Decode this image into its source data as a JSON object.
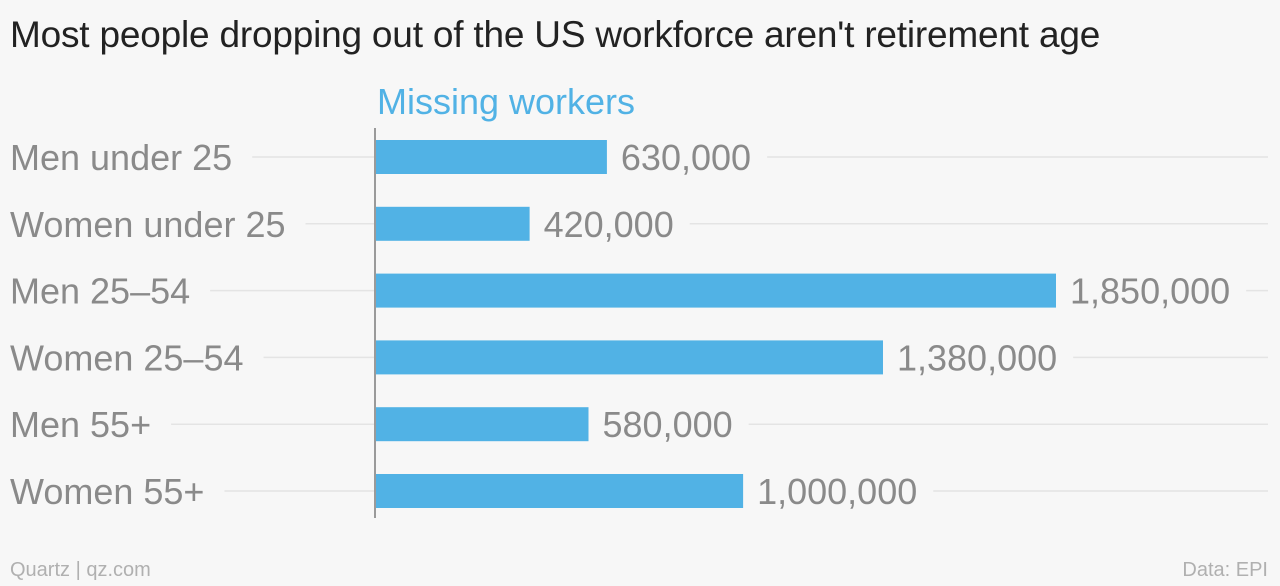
{
  "chart_data": {
    "type": "bar",
    "orientation": "horizontal",
    "title": "Most people dropping out of the US workforce aren't retirement age",
    "series": [
      {
        "name": "Missing workers",
        "values": [
          630000,
          420000,
          1850000,
          1380000,
          580000,
          1000000
        ],
        "value_labels": [
          "630,000",
          "420,000",
          "1,850,000",
          "1,380,000",
          "580,000",
          "1,000,000"
        ]
      }
    ],
    "categories": [
      "Men under 25",
      "Women under 25",
      "Men 25–54",
      "Women 25–54",
      "Men 55+",
      "Women 55+"
    ],
    "xlim": [
      0,
      2500000
    ],
    "grid": true,
    "legend": "top",
    "colors": {
      "bar": "#51b2e5",
      "series_label": "#51b2e5",
      "category_label": "#8a8a8a",
      "value_label": "#8a8a8a",
      "grid": "#e4e4e4",
      "axis": "#9a9a9a"
    }
  },
  "footer": {
    "source_left": "Quartz | qz.com",
    "source_right": "Data: EPI"
  }
}
